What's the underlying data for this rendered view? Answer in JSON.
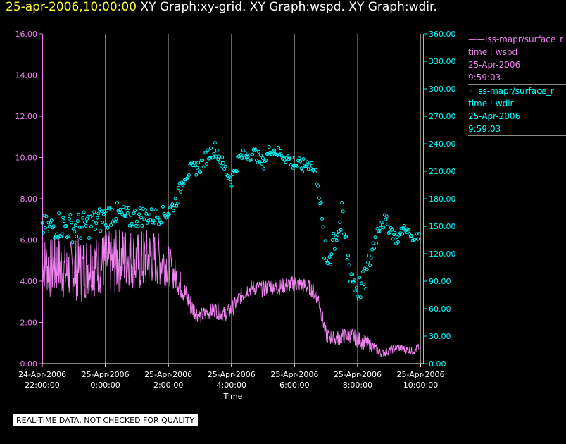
{
  "title": {
    "datetime": "25-apr-2006,10:00:00",
    "graphs": " XY Graph:xy-grid.  XY Graph:wspd.  XY Graph:wdir."
  },
  "legend": {
    "wspd": {
      "marker": "——",
      "source": "iss-mapr/surface_r",
      "variable": "time : wspd",
      "date": "25-Apr-2006",
      "time": "9:59:03"
    },
    "wdir": {
      "marker": "◦",
      "source": "iss-mapr/surface_r",
      "variable": "time : wdir",
      "date": "25-Apr-2006",
      "time": "9:59:03"
    }
  },
  "qc_note": "REAL-TIME DATA, NOT CHECKED FOR QUALITY",
  "colors": {
    "background": "#000000",
    "wspd": "#ee82ee",
    "wdir": "#00ffff",
    "grid": "#888888",
    "title_date": "#ffff33"
  },
  "chart_data": {
    "type": "line+scatter",
    "xlabel": "Time",
    "xlim": [
      -2.0,
      10.1
    ],
    "x_units": "hours relative to 25-Apr-2006 00:00",
    "x_ticks": [
      {
        "value": -2,
        "date": "24-Apr-2006",
        "time": "22:00:00"
      },
      {
        "value": 0,
        "date": "25-Apr-2006",
        "time": "0:00:00"
      },
      {
        "value": 2,
        "date": "25-Apr-2006",
        "time": "2:00:00"
      },
      {
        "value": 4,
        "date": "25-Apr-2006",
        "time": "4:00:00"
      },
      {
        "value": 6,
        "date": "25-Apr-2006",
        "time": "6:00:00"
      },
      {
        "value": 8,
        "date": "25-Apr-2006",
        "time": "8:00:00"
      },
      {
        "value": 10,
        "date": "25-Apr-2006",
        "time": "10:00:00"
      }
    ],
    "grid_x": [
      0,
      2,
      4,
      6,
      8,
      10
    ],
    "y_left": {
      "ylim": [
        0,
        16
      ],
      "ticks": [
        "0.00",
        "2.00",
        "4.00",
        "6.00",
        "8.00",
        "10.00",
        "12.00",
        "14.00",
        "16.00"
      ]
    },
    "y_right": {
      "ylim": [
        0,
        360
      ],
      "ticks": [
        "0.00",
        "30.00",
        "60.00",
        "90.00",
        "120.00",
        "150.00",
        "180.00",
        "210.00",
        "240.00",
        "270.00",
        "300.00",
        "330.00",
        "360.00"
      ]
    },
    "series": [
      {
        "name": "iss-mapr/surface_r time : wspd",
        "style": "line",
        "axis": "left",
        "x": [
          -2.0,
          -1.75,
          -1.5,
          -1.25,
          -1.0,
          -0.75,
          -0.5,
          -0.25,
          0.0,
          0.25,
          0.5,
          0.75,
          1.0,
          1.25,
          1.5,
          1.75,
          2.0,
          2.25,
          2.5,
          2.75,
          3.0,
          3.25,
          3.5,
          3.75,
          4.0,
          4.25,
          4.5,
          4.75,
          5.0,
          5.25,
          5.5,
          5.75,
          6.0,
          6.25,
          6.5,
          6.75,
          7.0,
          7.25,
          7.5,
          7.75,
          8.0,
          8.25,
          8.5,
          8.75,
          9.0,
          9.25,
          9.5,
          9.75,
          9.95
        ],
        "y": [
          5.0,
          4.6,
          4.8,
          4.4,
          4.6,
          4.5,
          4.9,
          4.7,
          5.0,
          4.8,
          5.1,
          5.2,
          4.9,
          5.0,
          5.2,
          5.0,
          4.8,
          4.2,
          3.5,
          2.7,
          2.3,
          2.5,
          2.6,
          2.4,
          2.6,
          3.2,
          3.6,
          3.7,
          3.6,
          3.8,
          3.7,
          3.8,
          3.9,
          3.8,
          3.7,
          3.2,
          1.4,
          1.2,
          1.3,
          1.4,
          1.2,
          1.0,
          0.8,
          0.5,
          0.6,
          0.8,
          0.7,
          0.6,
          0.8
        ],
        "noise": [
          1.3,
          1.5,
          1.6,
          1.4,
          1.5,
          1.6,
          1.6,
          1.5,
          1.5,
          1.6,
          1.6,
          1.5,
          1.5,
          1.6,
          1.4,
          1.3,
          1.0,
          0.8,
          0.6,
          0.5,
          0.4,
          0.4,
          0.4,
          0.4,
          0.4,
          0.4,
          0.4,
          0.4,
          0.4,
          0.4,
          0.4,
          0.4,
          0.4,
          0.4,
          0.4,
          0.4,
          0.4,
          0.4,
          0.4,
          0.4,
          0.4,
          0.4,
          0.3,
          0.2,
          0.2,
          0.2,
          0.2,
          0.2,
          0.2
        ]
      },
      {
        "name": "iss-mapr/surface_r time : wdir",
        "style": "scatter",
        "axis": "right",
        "x": [
          -2.0,
          -1.75,
          -1.5,
          -1.25,
          -1.0,
          -0.75,
          -0.5,
          -0.25,
          0.0,
          0.25,
          0.5,
          0.75,
          1.0,
          1.25,
          1.5,
          1.75,
          2.0,
          2.25,
          2.5,
          2.75,
          3.0,
          3.25,
          3.5,
          3.75,
          4.0,
          4.25,
          4.5,
          4.75,
          5.0,
          5.25,
          5.5,
          5.75,
          6.0,
          6.25,
          6.5,
          6.75,
          7.0,
          7.25,
          7.5,
          7.75,
          8.0,
          8.25,
          8.5,
          8.75,
          9.0,
          9.25,
          9.5,
          9.75,
          9.95
        ],
        "y": [
          150,
          148,
          152,
          150,
          148,
          150,
          152,
          155,
          160,
          165,
          162,
          158,
          160,
          162,
          160,
          162,
          165,
          178,
          205,
          212,
          215,
          228,
          235,
          215,
          200,
          225,
          228,
          230,
          218,
          235,
          230,
          225,
          218,
          215,
          220,
          200,
          105,
          140,
          155,
          105,
          80,
          90,
          130,
          158,
          150,
          135,
          150,
          135,
          140
        ],
        "noise": [
          12,
          14,
          16,
          16,
          16,
          16,
          15,
          15,
          14,
          13,
          12,
          12,
          12,
          11,
          10,
          9,
          8,
          8,
          8,
          8,
          8,
          8,
          8,
          8,
          8,
          7,
          7,
          7,
          7,
          7,
          7,
          7,
          8,
          8,
          8,
          10,
          22,
          22,
          22,
          18,
          15,
          15,
          12,
          10,
          8,
          6,
          5,
          4,
          3
        ]
      }
    ]
  }
}
